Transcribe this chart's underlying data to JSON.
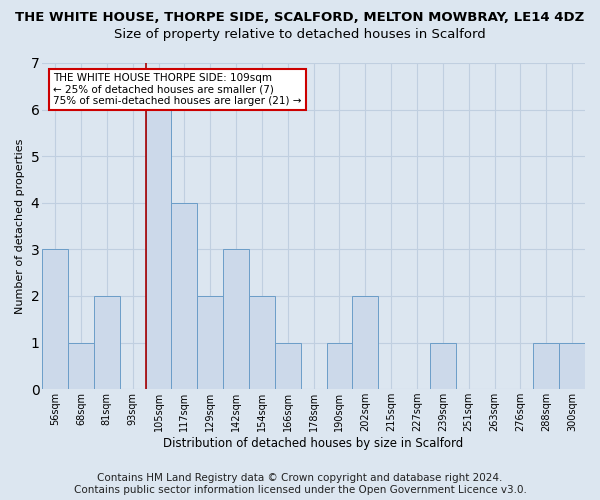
{
  "title_line1": "THE WHITE HOUSE, THORPE SIDE, SCALFORD, MELTON MOWBRAY, LE14 4DZ",
  "title_line2": "Size of property relative to detached houses in Scalford",
  "xlabel": "Distribution of detached houses by size in Scalford",
  "ylabel": "Number of detached properties",
  "categories": [
    "56sqm",
    "68sqm",
    "81sqm",
    "93sqm",
    "105sqm",
    "117sqm",
    "129sqm",
    "142sqm",
    "154sqm",
    "166sqm",
    "178sqm",
    "190sqm",
    "202sqm",
    "215sqm",
    "227sqm",
    "239sqm",
    "251sqm",
    "263sqm",
    "276sqm",
    "288sqm",
    "300sqm"
  ],
  "values": [
    3,
    1,
    2,
    0,
    6,
    4,
    2,
    3,
    2,
    1,
    0,
    1,
    2,
    0,
    0,
    1,
    0,
    0,
    0,
    1,
    1
  ],
  "bar_color": "#ccd9ea",
  "bar_edge_color": "#6b9dc8",
  "highlight_index": 4,
  "highlight_line_color": "#aa0000",
  "ylim": [
    0,
    7
  ],
  "yticks": [
    0,
    1,
    2,
    3,
    4,
    5,
    6,
    7
  ],
  "annotation_text": "THE WHITE HOUSE THORPE SIDE: 109sqm\n← 25% of detached houses are smaller (7)\n75% of semi-detached houses are larger (21) →",
  "annotation_box_color": "#ffffff",
  "annotation_box_edge": "#cc0000",
  "footer_line1": "Contains HM Land Registry data © Crown copyright and database right 2024.",
  "footer_line2": "Contains public sector information licensed under the Open Government Licence v3.0.",
  "background_color": "#dce6f0",
  "plot_bg_color": "#dce6f0",
  "grid_color": "#c0cfe0",
  "title_fontsize": 9.5,
  "subtitle_fontsize": 9.5,
  "footer_fontsize": 7.5
}
